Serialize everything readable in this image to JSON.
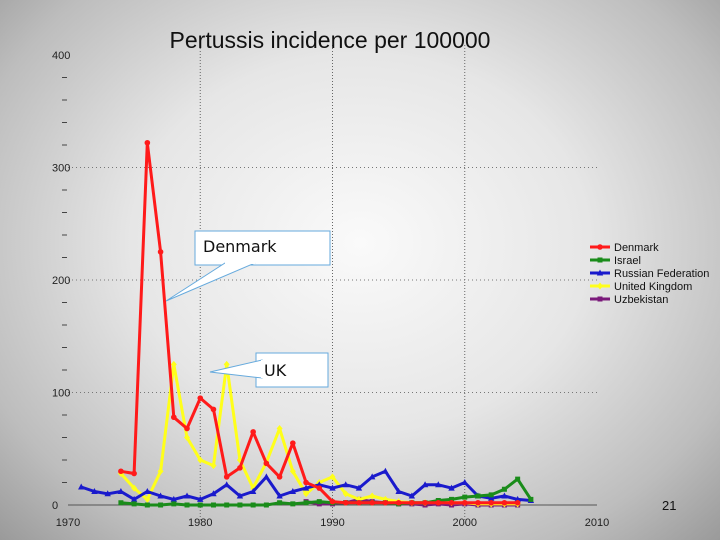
{
  "slide": {
    "page_number": "21"
  },
  "chart_data": {
    "type": "line",
    "title": "Pertussis incidence per 100000",
    "xlabel": "",
    "ylabel": "",
    "xlim": [
      1970,
      2010
    ],
    "ylim": [
      0,
      400
    ],
    "xticks": [
      1970,
      1980,
      1990,
      2000,
      2010
    ],
    "yticks": [
      0,
      100,
      200,
      300,
      400
    ],
    "grid": {
      "vertical": [
        1980,
        1990,
        2000
      ],
      "horizontal": [
        100,
        200,
        300
      ]
    },
    "legend_position": "right",
    "series": [
      {
        "name": "Denmark",
        "color": "#ff1a1a",
        "marker": "circle",
        "points": [
          [
            1974,
            30
          ],
          [
            1975,
            28
          ],
          [
            1976,
            322
          ],
          [
            1977,
            225
          ],
          [
            1978,
            78
          ],
          [
            1979,
            68
          ],
          [
            1980,
            95
          ],
          [
            1981,
            85
          ],
          [
            1982,
            25
          ],
          [
            1983,
            33
          ],
          [
            1984,
            65
          ],
          [
            1985,
            37
          ],
          [
            1986,
            25
          ],
          [
            1987,
            55
          ],
          [
            1988,
            20
          ],
          [
            1989,
            15
          ],
          [
            1990,
            3
          ],
          [
            1991,
            2
          ],
          [
            1992,
            2
          ],
          [
            1993,
            2
          ],
          [
            1994,
            2
          ],
          [
            1995,
            2
          ],
          [
            1996,
            2
          ],
          [
            1997,
            2
          ],
          [
            1998,
            2
          ],
          [
            1999,
            2
          ],
          [
            2000,
            2
          ],
          [
            2001,
            2
          ],
          [
            2002,
            2
          ],
          [
            2003,
            2
          ],
          [
            2004,
            2
          ]
        ]
      },
      {
        "name": "Israel",
        "color": "#1a8c1a",
        "marker": "square",
        "points": [
          [
            1974,
            2
          ],
          [
            1975,
            1
          ],
          [
            1976,
            0
          ],
          [
            1977,
            0
          ],
          [
            1978,
            1
          ],
          [
            1979,
            0
          ],
          [
            1980,
            0
          ],
          [
            1981,
            0
          ],
          [
            1982,
            0
          ],
          [
            1983,
            0
          ],
          [
            1984,
            0
          ],
          [
            1985,
            0
          ],
          [
            1986,
            2
          ],
          [
            1987,
            1
          ],
          [
            1988,
            2
          ],
          [
            1989,
            3
          ],
          [
            1990,
            2
          ],
          [
            1991,
            2
          ],
          [
            1992,
            2
          ],
          [
            1993,
            2
          ],
          [
            1994,
            2
          ],
          [
            1995,
            1
          ],
          [
            1996,
            2
          ],
          [
            1997,
            2
          ],
          [
            1998,
            4
          ],
          [
            1999,
            5
          ],
          [
            2000,
            7
          ],
          [
            2001,
            8
          ],
          [
            2002,
            9
          ],
          [
            2003,
            14
          ],
          [
            2004,
            23
          ],
          [
            2005,
            5
          ]
        ]
      },
      {
        "name": "Russian Federation",
        "color": "#1a1acc",
        "marker": "triangle",
        "points": [
          [
            1971,
            16
          ],
          [
            1972,
            12
          ],
          [
            1973,
            10
          ],
          [
            1974,
            12
          ],
          [
            1975,
            5
          ],
          [
            1976,
            12
          ],
          [
            1977,
            8
          ],
          [
            1978,
            5
          ],
          [
            1979,
            8
          ],
          [
            1980,
            5
          ],
          [
            1981,
            10
          ],
          [
            1982,
            18
          ],
          [
            1983,
            8
          ],
          [
            1984,
            12
          ],
          [
            1985,
            25
          ],
          [
            1986,
            8
          ],
          [
            1987,
            12
          ],
          [
            1988,
            15
          ],
          [
            1989,
            18
          ],
          [
            1990,
            15
          ],
          [
            1991,
            18
          ],
          [
            1992,
            15
          ],
          [
            1993,
            25
          ],
          [
            1994,
            30
          ],
          [
            1995,
            12
          ],
          [
            1996,
            8
          ],
          [
            1997,
            18
          ],
          [
            1998,
            18
          ],
          [
            1999,
            15
          ],
          [
            2000,
            20
          ],
          [
            2001,
            8
          ],
          [
            2002,
            6
          ],
          [
            2003,
            8
          ],
          [
            2004,
            5
          ],
          [
            2005,
            4
          ]
        ]
      },
      {
        "name": "United Kingdom",
        "color": "#ffff1a",
        "marker": "diamond",
        "points": [
          [
            1974,
            28
          ],
          [
            1975,
            15
          ],
          [
            1976,
            5
          ],
          [
            1977,
            30
          ],
          [
            1978,
            125
          ],
          [
            1979,
            60
          ],
          [
            1980,
            40
          ],
          [
            1981,
            35
          ],
          [
            1982,
            125
          ],
          [
            1983,
            40
          ],
          [
            1984,
            15
          ],
          [
            1985,
            38
          ],
          [
            1986,
            68
          ],
          [
            1987,
            30
          ],
          [
            1988,
            10
          ],
          [
            1989,
            20
          ],
          [
            1990,
            25
          ],
          [
            1991,
            10
          ],
          [
            1992,
            5
          ],
          [
            1993,
            8
          ],
          [
            1994,
            5
          ],
          [
            1995,
            3
          ],
          [
            1996,
            2
          ],
          [
            1997,
            2
          ],
          [
            1998,
            3
          ],
          [
            1999,
            2
          ],
          [
            2000,
            2
          ],
          [
            2001,
            1
          ],
          [
            2002,
            1
          ],
          [
            2003,
            1
          ],
          [
            2004,
            1
          ]
        ]
      },
      {
        "name": "Uzbekistan",
        "color": "#7a1a7a",
        "marker": "square",
        "points": [
          [
            1988,
            3
          ],
          [
            1989,
            1
          ],
          [
            1990,
            1
          ],
          [
            1991,
            2
          ],
          [
            1992,
            5
          ],
          [
            1993,
            3
          ],
          [
            1994,
            2
          ],
          [
            1995,
            1
          ],
          [
            1996,
            1
          ],
          [
            1997,
            0
          ],
          [
            1998,
            1
          ],
          [
            1999,
            0
          ],
          [
            2000,
            1
          ],
          [
            2001,
            0
          ],
          [
            2002,
            0
          ],
          [
            2003,
            0
          ],
          [
            2004,
            0
          ]
        ]
      }
    ],
    "annotations": [
      {
        "text": "Denmark"
      },
      {
        "text": "UK"
      }
    ]
  }
}
